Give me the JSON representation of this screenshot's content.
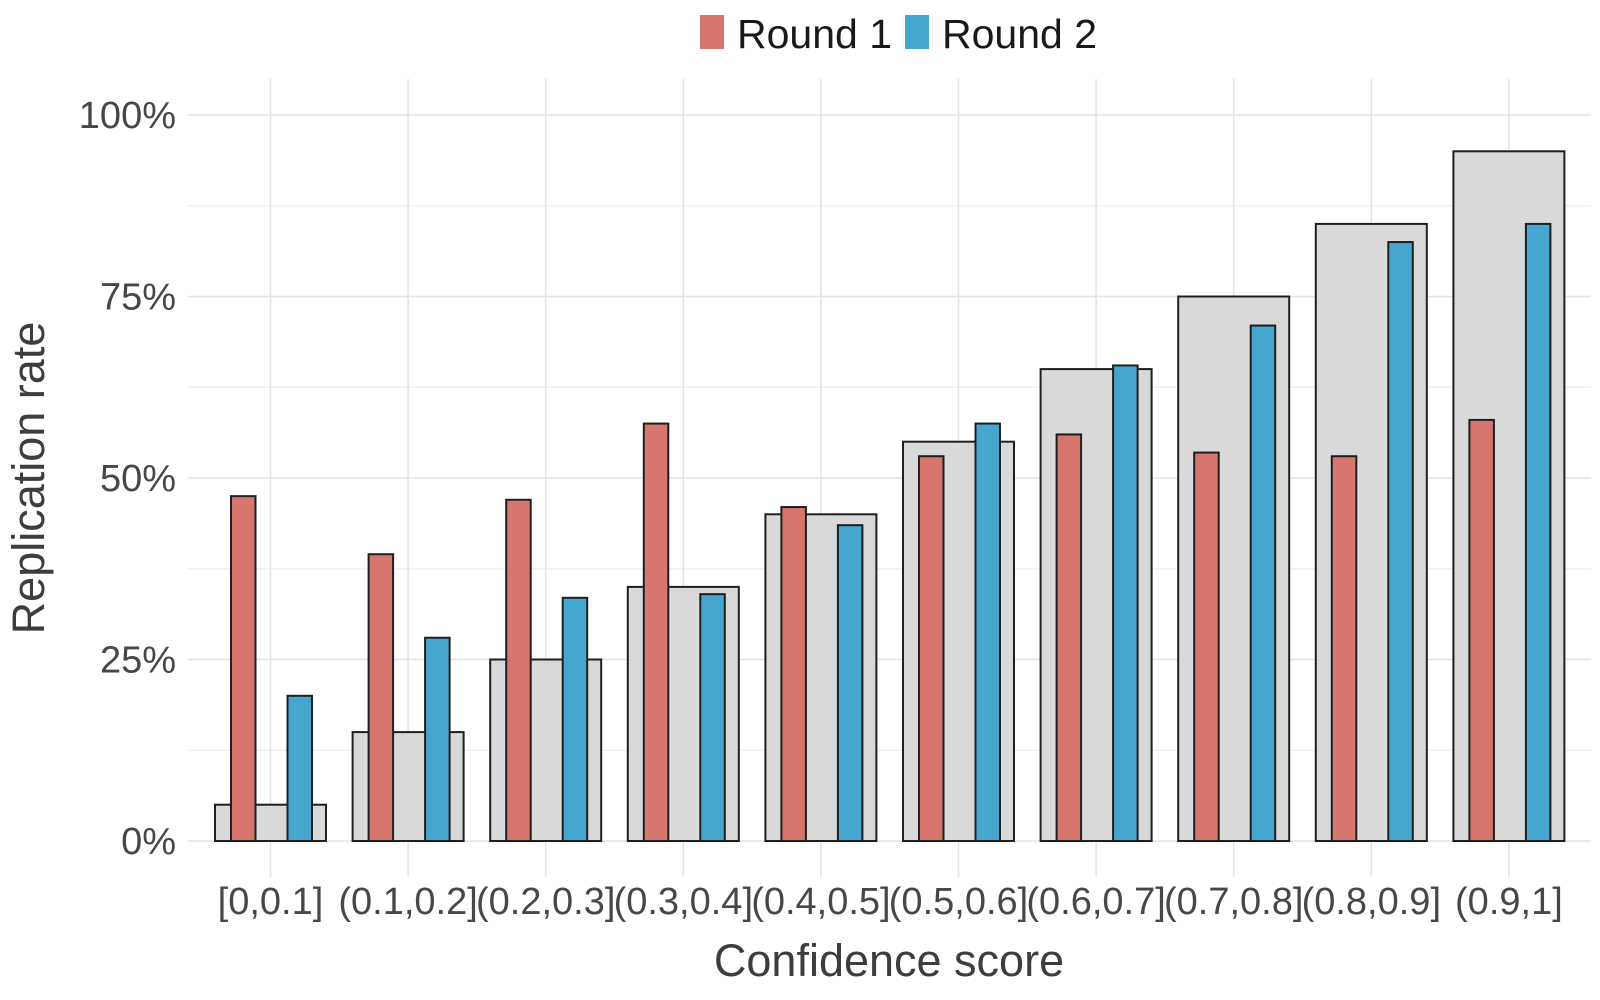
{
  "figure": {
    "background_color": "#ffffff",
    "text_color": "#3d3d3d",
    "gridline_major_color": "#e4e4e4",
    "gridline_minor_color": "#f0f0f0",
    "bar_outline_color": "#1f1f1f"
  },
  "legend": {
    "position": "top-center",
    "items": [
      {
        "label": "Round 1",
        "color": "#d7766c"
      },
      {
        "label": "Round 2",
        "color": "#45a6cf"
      }
    ]
  },
  "chart_data": {
    "type": "bar",
    "title": "",
    "xlabel": "Confidence score",
    "ylabel": "Replication rate",
    "categories": [
      "[0,0.1]",
      "(0.1,0.2]",
      "(0.2,0.3]",
      "(0.3,0.4]",
      "(0.4,0.5]",
      "(0.5,0.6]",
      "(0.6,0.7]",
      "(0.7,0.8]",
      "(0.8,0.9]",
      "(0.9,1]"
    ],
    "series": [
      {
        "name": "",
        "role": "background-reference",
        "in_legend": false,
        "color": "#d9d9d9",
        "values": [
          5,
          15,
          25,
          35,
          45,
          55,
          65,
          75,
          85,
          95
        ]
      },
      {
        "name": "Round 1",
        "role": "foreground",
        "in_legend": true,
        "color": "#d7766c",
        "values": [
          47.5,
          39.5,
          47,
          57.5,
          46,
          53,
          56,
          53.5,
          53,
          58
        ]
      },
      {
        "name": "Round 2",
        "role": "foreground",
        "in_legend": true,
        "color": "#45a6cf",
        "values": [
          20,
          28,
          33.5,
          34,
          43.5,
          57.5,
          65.5,
          71,
          82.5,
          85
        ]
      }
    ],
    "y_ticks": [
      {
        "value": 0,
        "label": "0%"
      },
      {
        "value": 25,
        "label": "25%"
      },
      {
        "value": 50,
        "label": "50%"
      },
      {
        "value": 75,
        "label": "75%"
      },
      {
        "value": 100,
        "label": "100%"
      }
    ],
    "y_minor_gridlines": [
      12.5,
      37.5,
      62.5,
      87.5
    ],
    "ylim": [
      0,
      100
    ],
    "grid": "major and minor horizontal, one vertical gridline per category",
    "legend_position": "top",
    "axis_lines": "none"
  }
}
